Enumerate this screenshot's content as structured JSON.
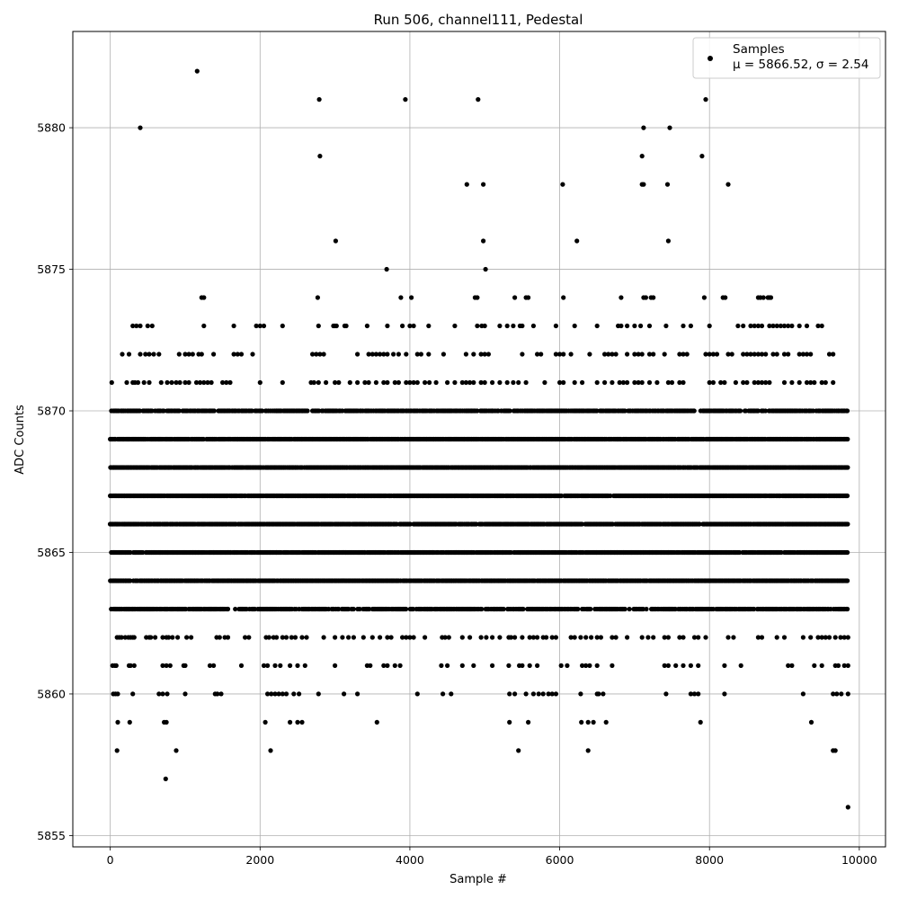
{
  "chart_data": {
    "type": "scatter",
    "title": "Run 506, channel111, Pedestal",
    "xlabel": "Sample #",
    "ylabel": "ADC Counts",
    "xlim": [
      -500,
      10350
    ],
    "ylim": [
      5854.6,
      5883.4
    ],
    "xticks": [
      0,
      2000,
      4000,
      6000,
      8000,
      10000
    ],
    "yticks": [
      5855,
      5860,
      5865,
      5870,
      5875,
      5880
    ],
    "grid": true,
    "legend_position": "top-right",
    "legend": {
      "label": "Samples",
      "stats_prefix": "μ = 5866.52, ",
      "stats_sigma": "σ = 2.54"
    },
    "series": [
      {
        "name": "Samples",
        "color": "#000000",
        "n_points": 9850,
        "core_bands": [
          {
            "y": 5863,
            "x_ranges": [
              [
                0,
                9850
              ]
            ]
          },
          {
            "y": 5864,
            "x_ranges": [
              [
                0,
                9850
              ]
            ]
          },
          {
            "y": 5865,
            "x_ranges": [
              [
                0,
                9850
              ]
            ]
          },
          {
            "y": 5866,
            "x_ranges": [
              [
                0,
                9850
              ]
            ]
          },
          {
            "y": 5867,
            "x_ranges": [
              [
                0,
                9850
              ]
            ]
          },
          {
            "y": 5868,
            "x_ranges": [
              [
                0,
                9850
              ]
            ]
          },
          {
            "y": 5869,
            "x_ranges": [
              [
                0,
                9850
              ]
            ]
          },
          {
            "y": 5870,
            "x_ranges": [
              [
                0,
                9850
              ]
            ]
          }
        ],
        "sparse_bands": [
          {
            "y": 5862,
            "x": [
              90,
              120,
              150,
              200,
              240,
              270,
              300,
              320,
              480,
              520,
              540,
              600,
              700,
              750,
              780,
              830,
              900,
              1020,
              1080,
              1420,
              1460,
              1530,
              1570,
              1800,
              1850,
              2080,
              2120,
              2180,
              2220,
              2300,
              2350,
              2420,
              2470,
              2560,
              2620,
              2850,
              3000,
              3100,
              3180,
              3250,
              3380,
              3500,
              3600,
              3700,
              3750,
              3900,
              3950,
              4000,
              4050,
              4200,
              4430,
              4470,
              4520,
              4700,
              4800,
              4950,
              5020,
              5100,
              5200,
              5320,
              5350,
              5400,
              5500,
              5600,
              5650,
              5700,
              5780,
              5820,
              5900,
              5950,
              6150,
              6200,
              6280,
              6350,
              6420,
              6500,
              6550,
              6700,
              6750,
              6900,
              7100,
              7180,
              7250,
              7400,
              7450,
              7600,
              7650,
              7800,
              7850,
              7950,
              8250,
              8320,
              8650,
              8700,
              8900,
              9000,
              9250,
              9350,
              9450,
              9500,
              9550,
              9600,
              9680,
              9750,
              9800,
              9850
            ]
          },
          {
            "y": 5861,
            "x": [
              30,
              60,
              80,
              250,
              270,
              320,
              700,
              750,
              800,
              980,
              1000,
              1330,
              1380,
              1750,
              2050,
              2100,
              2200,
              2270,
              2400,
              2500,
              2600,
              3000,
              3430,
              3470,
              3650,
              3700,
              3800,
              3870,
              4420,
              4500,
              4700,
              4850,
              5100,
              5320,
              5460,
              5500,
              5600,
              5700,
              6020,
              6100,
              6300,
              6350,
              6400,
              6500,
              6700,
              7400,
              7450,
              7550,
              7650,
              7750,
              7850,
              8200,
              8420,
              9050,
              9100,
              9400,
              9500,
              9680,
              9720,
              9800,
              9850
            ]
          },
          {
            "y": 5860,
            "x": [
              40,
              70,
              100,
              300,
              650,
              700,
              760,
              1000,
              1400,
              1430,
              1480,
              2100,
              2150,
              2200,
              2250,
              2300,
              2350,
              2450,
              2520,
              2780,
              3120,
              3300,
              4100,
              4440,
              4550,
              5330,
              5400,
              5550,
              5650,
              5720,
              5780,
              5850,
              5900,
              5950,
              6280,
              6500,
              6520,
              6580,
              7420,
              7750,
              7800,
              7850,
              8200,
              9250,
              9650,
              9700,
              9760,
              9850
            ]
          },
          {
            "y": 5859,
            "x": [
              100,
              260,
              720,
              750,
              2070,
              2400,
              2500,
              2560,
              3560,
              5330,
              5580,
              6290,
              6380,
              6450,
              6620,
              7880,
              9360
            ]
          },
          {
            "y": 5858,
            "x": [
              90,
              880,
              2140,
              5450,
              6380,
              9650,
              9680
            ]
          },
          {
            "y": 5857,
            "x": [
              740
            ]
          },
          {
            "y": 5856,
            "x": [
              9850
            ]
          },
          {
            "y": 5871,
            "x": [
              20,
              220,
              300,
              330,
              370,
              450,
              520,
              680,
              760,
              820,
              880,
              930,
              1000,
              1050,
              1150,
              1200,
              1250,
              1300,
              1350,
              1500,
              1550,
              1600,
              2000,
              2300,
              2680,
              2720,
              2780,
              2880,
              3000,
              3050,
              3200,
              3300,
              3400,
              3450,
              3550,
              3650,
              3700,
              3800,
              3850,
              3950,
              4000,
              4050,
              4100,
              4200,
              4260,
              4350,
              4500,
              4600,
              4700,
              4750,
              4800,
              4850,
              4950,
              5000,
              5100,
              5200,
              5300,
              5380,
              5450,
              5550,
              5800,
              6000,
              6050,
              6200,
              6300,
              6500,
              6600,
              6700,
              6800,
              6850,
              6900,
              7000,
              7050,
              7100,
              7200,
              7300,
              7450,
              7500,
              7600,
              7650,
              8000,
              8050,
              8150,
              8200,
              8350,
              8450,
              8500,
              8600,
              8650,
              8700,
              8750,
              8800,
              9000,
              9100,
              9200,
              9300,
              9350,
              9400,
              9500,
              9550,
              9650
            ]
          },
          {
            "y": 5872,
            "x": [
              160,
              250,
              400,
              470,
              520,
              580,
              650,
              920,
              1000,
              1050,
              1100,
              1180,
              1220,
              1380,
              1650,
              1700,
              1750,
              1900,
              2700,
              2750,
              2800,
              2850,
              3300,
              3450,
              3500,
              3550,
              3600,
              3650,
              3700,
              3780,
              3850,
              3950,
              4100,
              4150,
              4250,
              4450,
              4750,
              4850,
              4950,
              5000,
              5050,
              5500,
              5700,
              5750,
              5950,
              6000,
              6050,
              6150,
              6400,
              6600,
              6650,
              6700,
              6750,
              6900,
              7000,
              7050,
              7100,
              7200,
              7250,
              7400,
              7600,
              7650,
              7700,
              7950,
              8000,
              8050,
              8100,
              8250,
              8300,
              8450,
              8500,
              8550,
              8600,
              8650,
              8700,
              8750,
              8850,
              8900,
              9000,
              9050,
              9200,
              9250,
              9300,
              9350,
              9600,
              9650
            ]
          },
          {
            "y": 5873,
            "x": [
              300,
              350,
              400,
              500,
              560,
              1250,
              1650,
              1950,
              2000,
              2050,
              2300,
              2780,
              2980,
              3000,
              3020,
              3130,
              3150,
              3430,
              3700,
              3900,
              4000,
              4050,
              4250,
              4600,
              4900,
              4960,
              5000,
              5200,
              5300,
              5380,
              5470,
              5500,
              5650,
              5950,
              6200,
              6500,
              6780,
              6820,
              6900,
              7000,
              7080,
              7200,
              7420,
              7650,
              7750,
              8000,
              8380,
              8450,
              8550,
              8600,
              8650,
              8700,
              8800,
              8850,
              8900,
              8950,
              9000,
              9050,
              9100,
              9200,
              9300,
              9450,
              9500
            ]
          },
          {
            "y": 5874,
            "x": [
              1220,
              1250,
              2770,
              3880,
              4020,
              4870,
              4900,
              5400,
              5550,
              5580,
              6050,
              6820,
              7120,
              7150,
              7220,
              7250,
              7930,
              8180,
              8210,
              8650,
              8680,
              8720,
              8780,
              8800,
              8820
            ]
          },
          {
            "y": 5875,
            "x": [
              3690,
              5010
            ]
          },
          {
            "y": 5876,
            "x": [
              3010,
              4980,
              6230,
              7450
            ]
          },
          {
            "y": 5878,
            "x": [
              4760,
              4980,
              6040,
              7100,
              7120,
              7440,
              8250
            ]
          },
          {
            "y": 5879,
            "x": [
              2800,
              7100,
              7900
            ]
          },
          {
            "y": 5880,
            "x": [
              400,
              7120,
              7470
            ]
          },
          {
            "y": 5881,
            "x": [
              2790,
              3940,
              4910,
              7950
            ]
          },
          {
            "y": 5882,
            "x": [
              1160
            ]
          }
        ]
      }
    ]
  }
}
